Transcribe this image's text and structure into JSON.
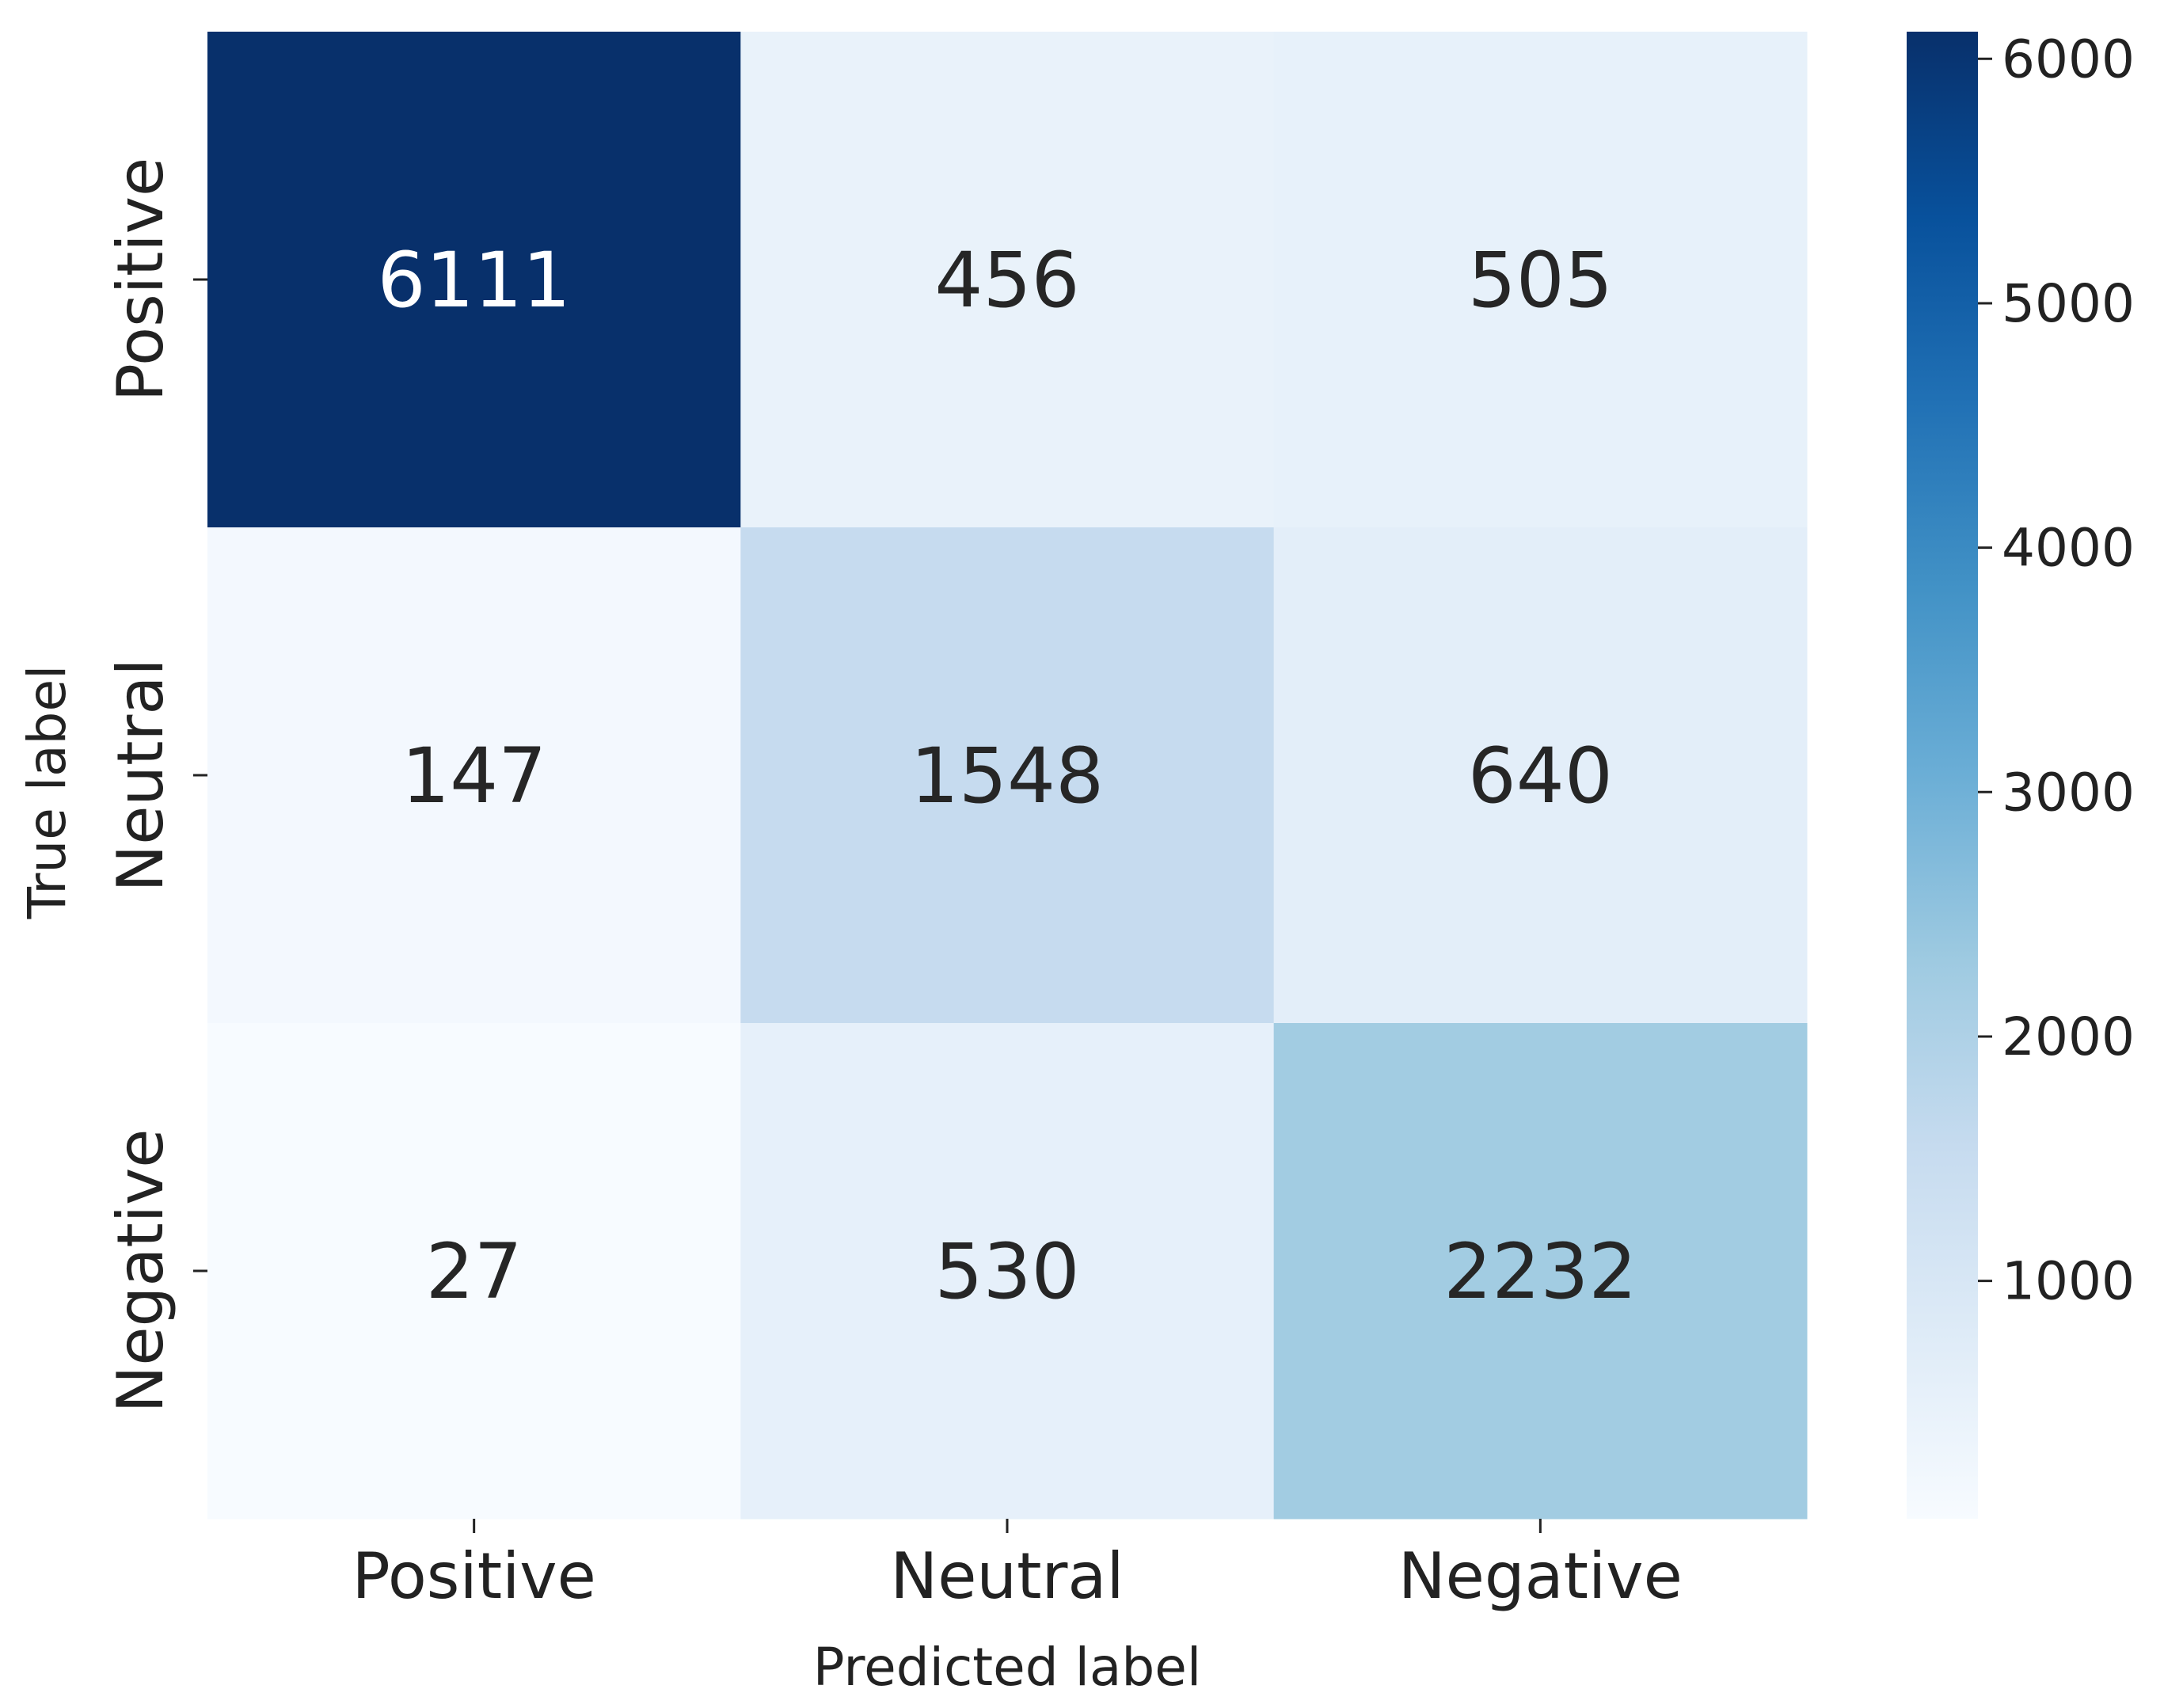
{
  "chart_data": {
    "type": "heatmap",
    "x_categories": [
      "Positive",
      "Neutral",
      "Negative"
    ],
    "y_categories": [
      "Positive",
      "Neutral",
      "Negative"
    ],
    "matrix": [
      [
        6111,
        456,
        505
      ],
      [
        147,
        1548,
        640
      ],
      [
        27,
        530,
        2232
      ]
    ],
    "xlabel": "Predicted label",
    "ylabel": "True label",
    "colormap": "Blues",
    "colorbar": {
      "min": 27,
      "max": 6111,
      "ticks": [
        1000,
        2000,
        3000,
        4000,
        5000,
        6000
      ],
      "tick_labels": [
        "1000",
        "2000",
        "3000",
        "4000",
        "5000",
        "6000"
      ]
    },
    "grid": false
  }
}
